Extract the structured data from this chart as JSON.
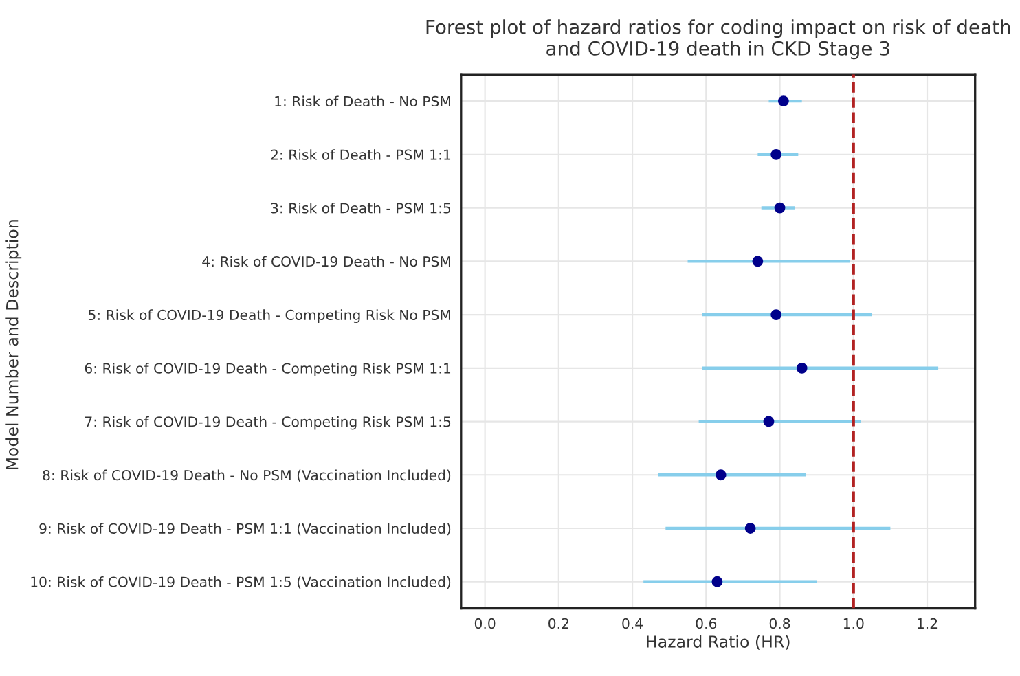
{
  "chart_data": {
    "type": "scatter",
    "orientation": "horizontal",
    "title": "Forest plot of hazard ratios for coding impact on risk of death\nand COVID-19 death in CKD Stage 3",
    "xlabel": "Hazard Ratio (HR)",
    "ylabel": "Model Number and Description",
    "categories": [
      "1: Risk of Death - No PSM",
      "2: Risk of Death - PSM 1:1",
      "3: Risk of Death - PSM 1:5",
      "4: Risk of COVID-19 Death - No PSM",
      "5: Risk of COVID-19 Death - Competing Risk No PSM",
      "6: Risk of COVID-19 Death - Competing Risk PSM 1:1",
      "7: Risk of COVID-19 Death - Competing Risk PSM 1:5",
      "8: Risk of COVID-19 Death - No PSM (Vaccination Included)",
      "9: Risk of COVID-19 Death - PSM 1:1 (Vaccination Included)",
      "10: Risk of COVID-19 Death - PSM 1:5 (Vaccination Included)"
    ],
    "series": [
      {
        "color": "#00008b",
        "values": [
          0.81,
          0.79,
          0.8,
          0.74,
          0.79,
          0.86,
          0.77,
          0.64,
          0.72,
          0.63
        ],
        "errors": [
          [
            0.77,
            0.86
          ],
          [
            0.74,
            0.85
          ],
          [
            0.75,
            0.84
          ],
          [
            0.55,
            0.99
          ],
          [
            0.59,
            1.05
          ],
          [
            0.59,
            1.23
          ],
          [
            0.58,
            1.02
          ],
          [
            0.47,
            0.87
          ],
          [
            0.49,
            1.1
          ],
          [
            0.43,
            0.9
          ]
        ]
      }
    ],
    "xlim": [
      -0.065,
      1.33
    ],
    "xticks": [
      {
        "value": 0,
        "label": "0.0"
      },
      0.2,
      0.4,
      0.6,
      0.8,
      {
        "value": 1,
        "label": "1.0"
      },
      1.2
    ],
    "ref_lines": [
      {
        "axis": "x",
        "value": 1,
        "color": "#b22222",
        "line_style": "dashed"
      }
    ],
    "grid": true,
    "marker": "circle"
  }
}
